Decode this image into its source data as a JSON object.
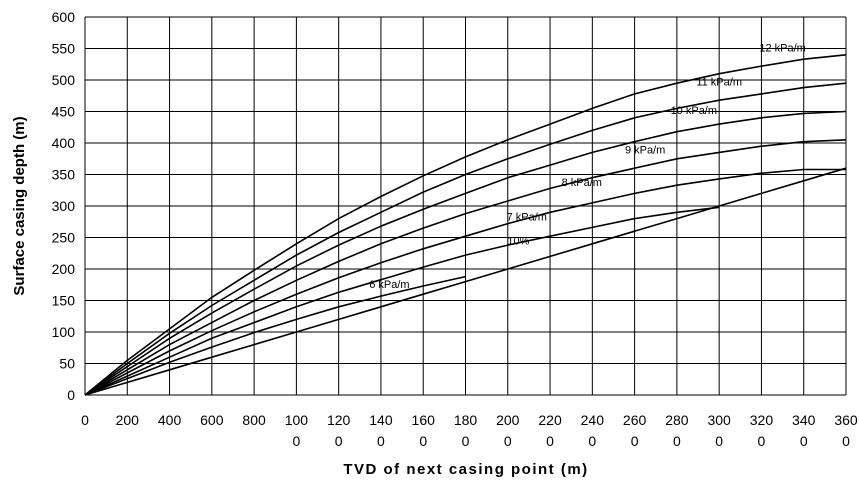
{
  "chart_data": {
    "type": "line",
    "title": "",
    "xlabel": "TVD of next casing point (m)",
    "ylabel": "Surface casing depth (m)",
    "xlim": [
      0,
      3600
    ],
    "ylim": [
      0,
      600
    ],
    "grid": true,
    "x_tick_labels": [
      {
        "value": 0,
        "lines": [
          "0"
        ]
      },
      {
        "value": 200,
        "lines": [
          "200"
        ]
      },
      {
        "value": 400,
        "lines": [
          "400"
        ]
      },
      {
        "value": 600,
        "lines": [
          "600"
        ]
      },
      {
        "value": 800,
        "lines": [
          "800"
        ]
      },
      {
        "value": 1000,
        "lines": [
          "100",
          "0"
        ]
      },
      {
        "value": 1200,
        "lines": [
          "120",
          "0"
        ]
      },
      {
        "value": 1400,
        "lines": [
          "140",
          "0"
        ]
      },
      {
        "value": 1600,
        "lines": [
          "160",
          "0"
        ]
      },
      {
        "value": 1800,
        "lines": [
          "180",
          "0"
        ]
      },
      {
        "value": 2000,
        "lines": [
          "200",
          "0"
        ]
      },
      {
        "value": 2200,
        "lines": [
          "220",
          "0"
        ]
      },
      {
        "value": 2400,
        "lines": [
          "240",
          "0"
        ]
      },
      {
        "value": 2600,
        "lines": [
          "260",
          "0"
        ]
      },
      {
        "value": 2800,
        "lines": [
          "280",
          "0"
        ]
      },
      {
        "value": 3000,
        "lines": [
          "300",
          "0"
        ]
      },
      {
        "value": 3200,
        "lines": [
          "320",
          "0"
        ]
      },
      {
        "value": 3400,
        "lines": [
          "340",
          "0"
        ]
      },
      {
        "value": 3600,
        "lines": [
          "360",
          "0"
        ]
      }
    ],
    "y_ticks": [
      0,
      50,
      100,
      150,
      200,
      250,
      300,
      350,
      400,
      450,
      500,
      550,
      600
    ],
    "series": [
      {
        "name": "12 kPa/m",
        "label_at": [
          3300,
          545
        ],
        "points": [
          [
            0,
            0
          ],
          [
            200,
            55
          ],
          [
            400,
            105
          ],
          [
            600,
            155
          ],
          [
            800,
            198
          ],
          [
            1000,
            240
          ],
          [
            1200,
            280
          ],
          [
            1400,
            315
          ],
          [
            1600,
            348
          ],
          [
            1800,
            378
          ],
          [
            2000,
            405
          ],
          [
            2200,
            430
          ],
          [
            2400,
            455
          ],
          [
            2600,
            478
          ],
          [
            2800,
            495
          ],
          [
            3000,
            510
          ],
          [
            3200,
            522
          ],
          [
            3400,
            533
          ],
          [
            3600,
            540
          ]
        ]
      },
      {
        "name": "11 kPa/m",
        "label_at": [
          3000,
          491
        ],
        "points": [
          [
            0,
            0
          ],
          [
            200,
            50
          ],
          [
            400,
            98
          ],
          [
            600,
            142
          ],
          [
            800,
            182
          ],
          [
            1000,
            222
          ],
          [
            1200,
            258
          ],
          [
            1400,
            290
          ],
          [
            1600,
            322
          ],
          [
            1800,
            350
          ],
          [
            2000,
            375
          ],
          [
            2200,
            398
          ],
          [
            2400,
            420
          ],
          [
            2600,
            440
          ],
          [
            2800,
            455
          ],
          [
            3000,
            468
          ],
          [
            3200,
            478
          ],
          [
            3400,
            488
          ],
          [
            3600,
            495
          ]
        ]
      },
      {
        "name": "10 kPa/m",
        "label_at": [
          2880,
          446
        ],
        "points": [
          [
            0,
            0
          ],
          [
            200,
            45
          ],
          [
            400,
            90
          ],
          [
            600,
            130
          ],
          [
            800,
            168
          ],
          [
            1000,
            205
          ],
          [
            1200,
            238
          ],
          [
            1400,
            268
          ],
          [
            1600,
            295
          ],
          [
            1800,
            320
          ],
          [
            2000,
            345
          ],
          [
            2200,
            365
          ],
          [
            2400,
            385
          ],
          [
            2600,
            402
          ],
          [
            2800,
            418
          ],
          [
            3000,
            430
          ],
          [
            3200,
            440
          ],
          [
            3400,
            447
          ],
          [
            3600,
            450
          ]
        ]
      },
      {
        "name": "9 kPa/m",
        "label_at": [
          2650,
          383
        ],
        "points": [
          [
            0,
            0
          ],
          [
            200,
            40
          ],
          [
            400,
            80
          ],
          [
            600,
            115
          ],
          [
            800,
            150
          ],
          [
            1000,
            182
          ],
          [
            1200,
            212
          ],
          [
            1400,
            240
          ],
          [
            1600,
            265
          ],
          [
            1800,
            288
          ],
          [
            2000,
            308
          ],
          [
            2200,
            328
          ],
          [
            2400,
            345
          ],
          [
            2600,
            360
          ],
          [
            2800,
            375
          ],
          [
            3000,
            385
          ],
          [
            3200,
            395
          ],
          [
            3400,
            402
          ],
          [
            3600,
            405
          ]
        ]
      },
      {
        "name": "8 kPa/m",
        "label_at": [
          2350,
          332
        ],
        "points": [
          [
            0,
            0
          ],
          [
            200,
            35
          ],
          [
            400,
            70
          ],
          [
            600,
            102
          ],
          [
            800,
            132
          ],
          [
            1000,
            160
          ],
          [
            1200,
            186
          ],
          [
            1400,
            210
          ],
          [
            1600,
            232
          ],
          [
            1800,
            252
          ],
          [
            2000,
            272
          ],
          [
            2200,
            290
          ],
          [
            2400,
            305
          ],
          [
            2600,
            320
          ],
          [
            2800,
            333
          ],
          [
            3000,
            343
          ],
          [
            3200,
            352
          ],
          [
            3400,
            358
          ],
          [
            3600,
            358
          ]
        ]
      },
      {
        "name": "7 kPa/m",
        "label_at": [
          2090,
          277
        ],
        "points": [
          [
            0,
            0
          ],
          [
            200,
            30
          ],
          [
            400,
            60
          ],
          [
            600,
            90
          ],
          [
            800,
            115
          ],
          [
            1000,
            140
          ],
          [
            1200,
            163
          ],
          [
            1400,
            183
          ],
          [
            1600,
            203
          ],
          [
            1800,
            222
          ],
          [
            2000,
            238
          ],
          [
            2200,
            252
          ],
          [
            2400,
            266
          ],
          [
            2600,
            280
          ],
          [
            2800,
            290
          ],
          [
            3000,
            298
          ]
        ]
      },
      {
        "name": "6 kPa/m",
        "label_at": [
          1440,
          170
        ],
        "points": [
          [
            0,
            0
          ],
          [
            200,
            26
          ],
          [
            400,
            52
          ],
          [
            600,
            76
          ],
          [
            800,
            99
          ],
          [
            1000,
            120
          ],
          [
            1200,
            140
          ],
          [
            1400,
            157
          ],
          [
            1600,
            173
          ],
          [
            1800,
            188
          ]
        ]
      },
      {
        "name": "10%",
        "label_at": [
          2050,
          239
        ],
        "points": [
          [
            0,
            0
          ],
          [
            200,
            20
          ],
          [
            400,
            40
          ],
          [
            600,
            60
          ],
          [
            800,
            80
          ],
          [
            1000,
            100
          ],
          [
            1200,
            120
          ],
          [
            1400,
            140
          ],
          [
            1600,
            160
          ],
          [
            1800,
            180
          ],
          [
            2000,
            200
          ],
          [
            2200,
            220
          ],
          [
            2400,
            240
          ],
          [
            2600,
            260
          ],
          [
            2800,
            280
          ],
          [
            3000,
            300
          ],
          [
            3200,
            320
          ],
          [
            3400,
            340
          ],
          [
            3600,
            360
          ]
        ]
      }
    ]
  }
}
